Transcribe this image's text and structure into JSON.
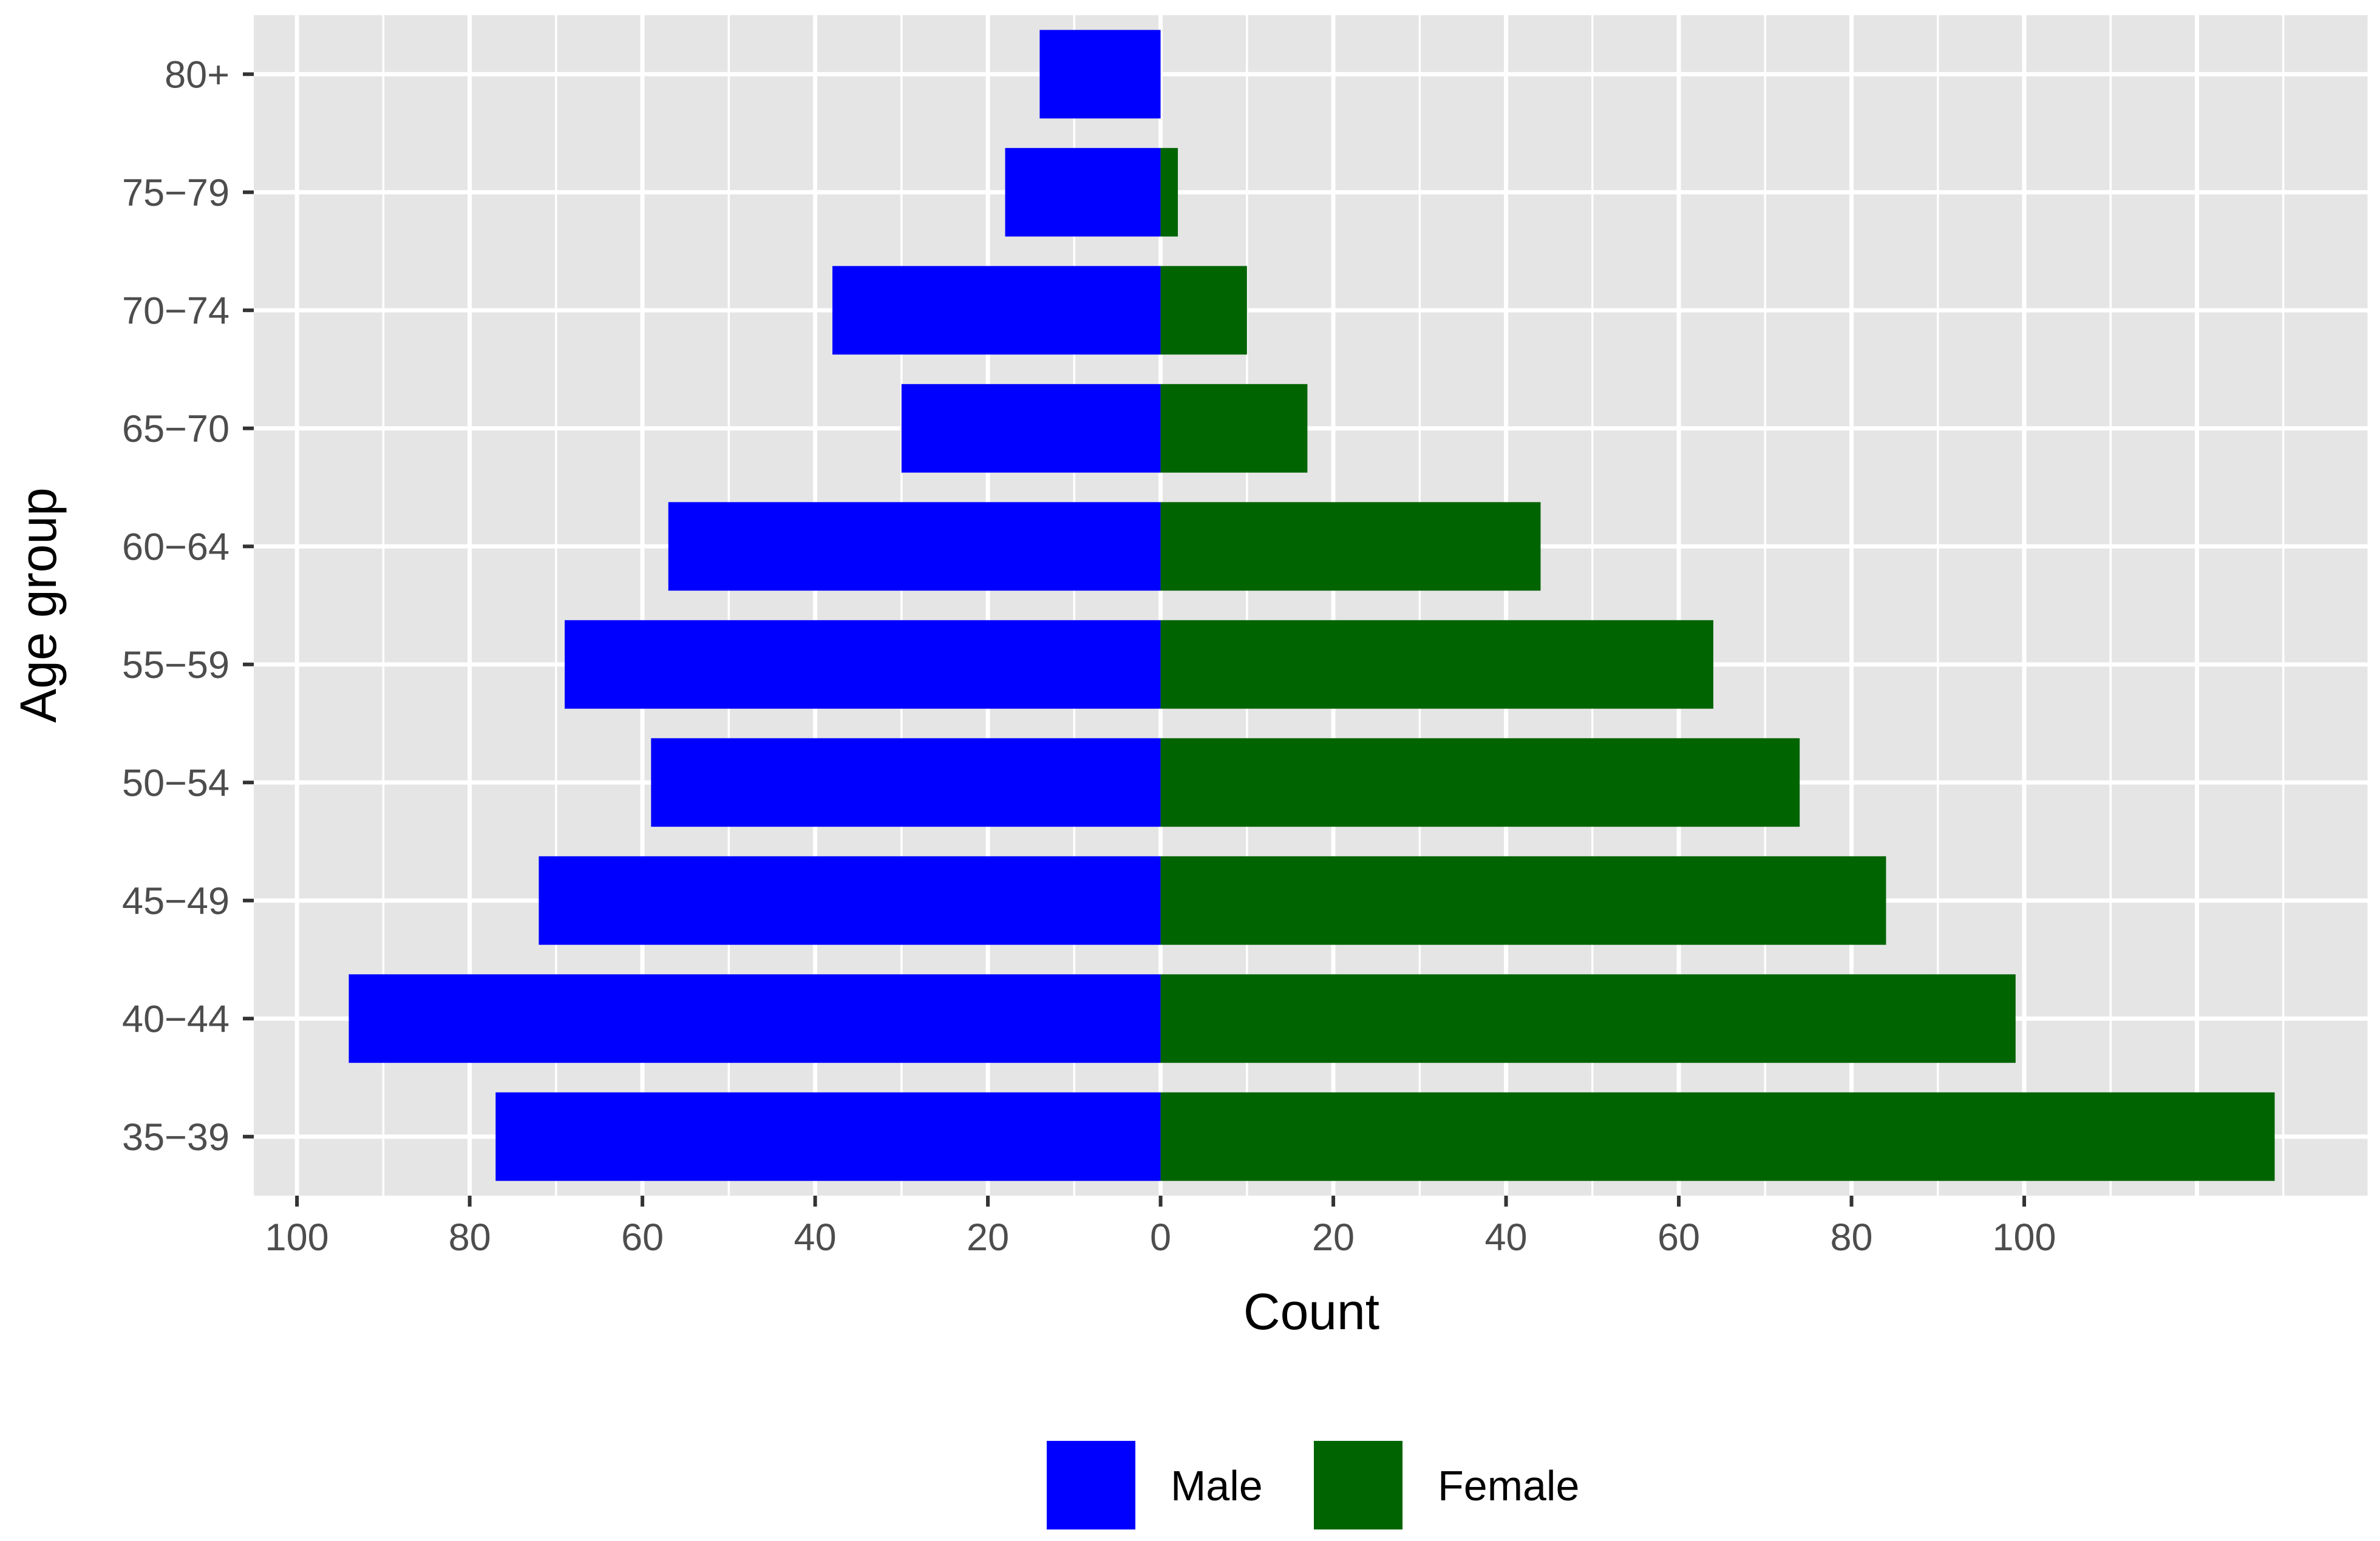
{
  "chart_data": {
    "type": "bar",
    "orientation": "horizontal",
    "title": "",
    "xlabel": "Count",
    "ylabel": "Age group",
    "categories": [
      "35−39",
      "40−44",
      "45−49",
      "50−54",
      "55−59",
      "60−64",
      "65−70",
      "70−74",
      "75−79",
      "80+"
    ],
    "series": [
      {
        "name": "Male",
        "direction": "negative",
        "color": "#0000ff",
        "values": [
          77,
          94,
          72,
          59,
          69,
          57,
          30,
          38,
          18,
          14
        ]
      },
      {
        "name": "Female",
        "direction": "positive",
        "color": "#006400",
        "values": [
          129,
          99,
          84,
          74,
          64,
          44,
          17,
          10,
          2,
          0
        ]
      }
    ],
    "xlim": [
      -105,
      140
    ],
    "x_ticks": [
      {
        "value": -100,
        "label": "100"
      },
      {
        "value": -80,
        "label": "80"
      },
      {
        "value": -60,
        "label": "60"
      },
      {
        "value": -40,
        "label": "40"
      },
      {
        "value": -20,
        "label": "20"
      },
      {
        "value": 0,
        "label": "0"
      },
      {
        "value": 20,
        "label": "20"
      },
      {
        "value": 40,
        "label": "40"
      },
      {
        "value": 60,
        "label": "60"
      },
      {
        "value": 80,
        "label": "80"
      },
      {
        "value": 100,
        "label": "100"
      }
    ],
    "grid": true,
    "panel_color": "#e5e5e5",
    "legend": {
      "position": "bottom",
      "entries": [
        "Male",
        "Female"
      ]
    }
  }
}
